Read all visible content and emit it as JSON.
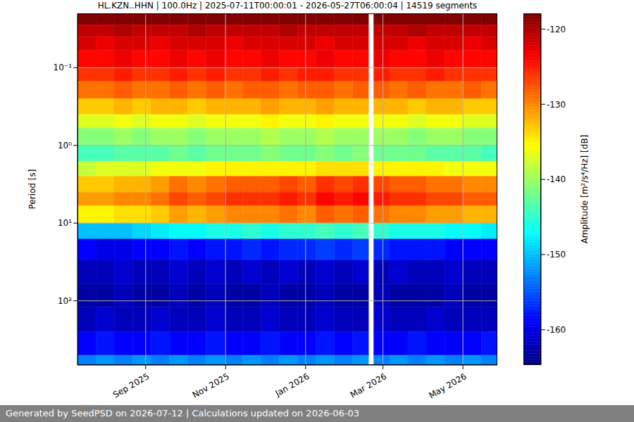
{
  "chart_data": {
    "type": "heatmap",
    "title": "HL.KZN..HHN | 100.0Hz | 2025-07-11T00:00:01 - 2026-05-27T06:00:04 | 14519 segments",
    "footer": "Generated by SeedPSD on 2026-07-12 | Calculations updated on 2026-06-03",
    "y_label": "Period [s]",
    "x": [
      "2025-07-11T00:00:01",
      "2025-07-25",
      "2025-08-08",
      "2025-08-22",
      "2025-09-05",
      "2025-09-19",
      "2025-10-03",
      "2025-10-17",
      "2025-10-31",
      "2025-11-14",
      "2025-11-28",
      "2025-12-12",
      "2025-12-26",
      "2026-01-09",
      "2026-01-23",
      "2026-02-06",
      "2026-02-18",
      "2026-02-22",
      "2026-03-06",
      "2026-03-20",
      "2026-04-03",
      "2026-04-17",
      "2026-05-01",
      "2026-05-15",
      "2026-05-27T06:00:04"
    ],
    "xlim": [
      "2025-07-11T00:00:01",
      "2026-05-27T06:00:04"
    ],
    "xticks": [
      {
        "value": "2025-09-01",
        "label": "Sep 2025"
      },
      {
        "value": "2025-11-01",
        "label": "Nov 2025"
      },
      {
        "value": "2026-01-01",
        "label": "Jan 2026"
      },
      {
        "value": "2026-03-01",
        "label": "Mar 2026"
      },
      {
        "value": "2026-05-01",
        "label": "May 2026"
      }
    ],
    "y": [
      0.02,
      0.028,
      0.04,
      0.06,
      0.1,
      0.15,
      0.25,
      0.4,
      0.6,
      1,
      1.6,
      2.5,
      4,
      6,
      10,
      16,
      30,
      60,
      120,
      250,
      500,
      670
    ],
    "ylim": [
      0.02,
      670
    ],
    "yticks": [
      {
        "value": 0.1,
        "label": "10⁻¹"
      },
      {
        "value": 1,
        "label": "10⁰"
      },
      {
        "value": 10,
        "label": "10¹"
      },
      {
        "value": 100,
        "label": "10²"
      }
    ],
    "log": "y",
    "grid": true,
    "z": [
      [
        -118,
        -118,
        -118,
        -118,
        -118,
        -118,
        -118,
        -118,
        -118,
        -118,
        -118,
        -118,
        -118,
        -118,
        -118,
        -118,
        null,
        -118,
        -118,
        -118,
        -118,
        -118,
        -118,
        -118
      ],
      [
        -121,
        -121,
        -120,
        -121,
        -121,
        -121,
        -120,
        -121,
        -121,
        -121,
        -121,
        -120,
        -121,
        -121,
        -121,
        -121,
        null,
        -121,
        -121,
        -120,
        -121,
        -121,
        -121,
        -121
      ],
      [
        -122,
        -123,
        -122,
        -122,
        -123,
        -122,
        -122,
        -122,
        -123,
        -122,
        -122,
        -122,
        -122,
        -123,
        -122,
        -122,
        null,
        -122,
        -122,
        -123,
        -122,
        -122,
        -123,
        -122
      ],
      [
        -124,
        -124,
        -123,
        -124,
        -124,
        -123,
        -124,
        -123,
        -124,
        -124,
        -123,
        -124,
        -124,
        -123,
        -124,
        -124,
        null,
        -123,
        -124,
        -124,
        -123,
        -124,
        -124,
        -124
      ],
      [
        -126,
        -126,
        -125,
        -126,
        -126,
        -125,
        -126,
        -125,
        -126,
        -126,
        -125,
        -126,
        -125,
        -125,
        -126,
        -126,
        null,
        -125,
        -126,
        -126,
        -125,
        -126,
        -126,
        -126
      ],
      [
        -129,
        -129,
        -128,
        -129,
        -129,
        -128,
        -129,
        -128,
        -129,
        -128,
        -128,
        -129,
        -128,
        -128,
        -129,
        -128,
        null,
        -128,
        -129,
        -128,
        -129,
        -129,
        -128,
        -129
      ],
      [
        -133,
        -133,
        -132,
        -133,
        -132,
        -132,
        -133,
        -132,
        -132,
        -132,
        -131,
        -132,
        -132,
        -131,
        -132,
        -132,
        null,
        -132,
        -132,
        -133,
        -132,
        -132,
        -133,
        -133
      ],
      [
        -137,
        -137,
        -136,
        -137,
        -136,
        -136,
        -137,
        -136,
        -136,
        -136,
        -135,
        -136,
        -136,
        -135,
        -136,
        -136,
        null,
        -136,
        -136,
        -137,
        -136,
        -136,
        -137,
        -137
      ],
      [
        -141,
        -141,
        -140,
        -141,
        -140,
        -140,
        -141,
        -140,
        -140,
        -140,
        -139,
        -140,
        -140,
        -139,
        -140,
        -140,
        null,
        -140,
        -140,
        -141,
        -140,
        -140,
        -141,
        -141
      ],
      [
        -144,
        -144,
        -143,
        -143,
        -143,
        -142,
        -143,
        -142,
        -142,
        -142,
        -141,
        -142,
        -142,
        -141,
        -142,
        -141,
        null,
        -142,
        -142,
        -142,
        -143,
        -143,
        -143,
        -144
      ],
      [
        -138,
        -137,
        -137,
        -137,
        -136,
        -136,
        -136,
        -135,
        -135,
        -135,
        -135,
        -135,
        -135,
        -134,
        -134,
        -134,
        null,
        -135,
        -135,
        -135,
        -135,
        -136,
        -136,
        -136
      ],
      [
        -133,
        -133,
        -132,
        -132,
        -131,
        -129,
        -130,
        -129,
        -128,
        -128,
        -128,
        -127,
        -128,
        -126,
        -127,
        -126,
        null,
        -127,
        -128,
        -128,
        -129,
        -129,
        -130,
        -130
      ],
      [
        -131,
        -131,
        -130,
        -130,
        -129,
        -127,
        -128,
        -127,
        -126,
        -126,
        -126,
        -125,
        -126,
        -124,
        -125,
        -124,
        null,
        -125,
        -126,
        -126,
        -127,
        -127,
        -128,
        -128
      ],
      [
        -135,
        -135,
        -134,
        -134,
        -133,
        -131,
        -132,
        -131,
        -130,
        -130,
        -130,
        -129,
        -130,
        -128,
        -129,
        -128,
        null,
        -129,
        -130,
        -130,
        -131,
        -131,
        -132,
        -132
      ],
      [
        -150,
        -150,
        -150,
        -149,
        -148,
        -147,
        -147,
        -146,
        -146,
        -145,
        -146,
        -145,
        -145,
        -144,
        -145,
        -144,
        null,
        -145,
        -146,
        -146,
        -146,
        -147,
        -147,
        -148
      ],
      [
        -159,
        -160,
        -160,
        -159,
        -159,
        -158,
        -159,
        -158,
        -158,
        -157,
        -158,
        -157,
        -157,
        -156,
        -157,
        -156,
        null,
        -157,
        -158,
        -158,
        -158,
        -159,
        -159,
        -159
      ],
      [
        -162,
        -162,
        -161,
        -162,
        -162,
        -161,
        -162,
        -161,
        -162,
        -161,
        -162,
        -161,
        -162,
        -161,
        -162,
        -161,
        null,
        -162,
        -161,
        -162,
        -162,
        -161,
        -162,
        -162
      ],
      [
        -163,
        -163,
        -162,
        -163,
        -163,
        -162,
        -163,
        -162,
        -163,
        -163,
        -162,
        -163,
        -163,
        -162,
        -163,
        -163,
        null,
        -162,
        -163,
        -163,
        -163,
        -162,
        -163,
        -163
      ],
      [
        -162,
        -161,
        -162,
        -162,
        -161,
        -162,
        -162,
        -161,
        -162,
        -162,
        -161,
        -162,
        -162,
        -161,
        -162,
        -162,
        null,
        -161,
        -162,
        -162,
        -161,
        -162,
        -162,
        -162
      ],
      [
        -159,
        -158,
        -159,
        -159,
        -158,
        -159,
        -159,
        -158,
        -159,
        -159,
        -158,
        -159,
        -159,
        -158,
        -159,
        -158,
        null,
        -159,
        -159,
        -158,
        -159,
        -159,
        -159,
        -158
      ],
      [
        -153,
        -152,
        -153,
        -152,
        -153,
        -152,
        -153,
        -152,
        -153,
        -152,
        -153,
        -152,
        -153,
        -152,
        -153,
        -152,
        null,
        -153,
        -152,
        -153,
        -152,
        -153,
        -152,
        -153
      ]
    ],
    "colorbar": {
      "label": "Amplitude [m²/s⁴/Hz] [dB]",
      "zlim": [
        -164.7,
        -117.9
      ],
      "ticks": [
        -160,
        -150,
        -140,
        -130,
        -120
      ]
    }
  }
}
